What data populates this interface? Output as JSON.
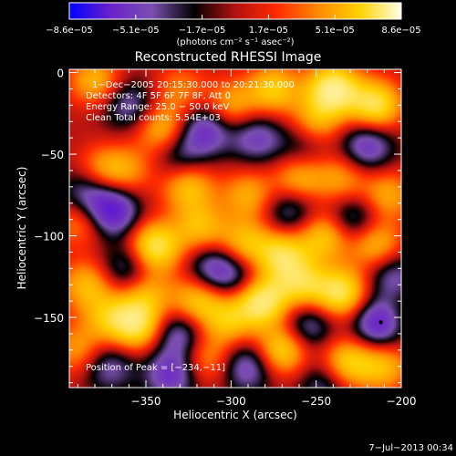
{
  "chart_data": {
    "type": "heatmap",
    "title": "Reconstructed RHESSI Image",
    "xlabel": "Heliocentric X (arcsec)",
    "ylabel": "Heliocentric Y (arcsec)",
    "xlim": [
      -395,
      -200
    ],
    "ylim": [
      -193,
      2
    ],
    "x_ticks": [
      -350,
      -300,
      -250,
      -200
    ],
    "x_tick_labels": [
      "−350",
      "−300",
      "−250",
      "−200"
    ],
    "y_ticks": [
      0,
      -50,
      -100,
      -150
    ],
    "y_tick_labels": [
      "0",
      "−50",
      "−100",
      "−150"
    ],
    "colorbar": {
      "tick_labels": [
        "−8.6e−05",
        "−5.1e−05",
        "−1.7e−05",
        "1.7e−05",
        "5.1e−05",
        "8.6e−05"
      ],
      "unit_label": "(photons cm⁻² s⁻¹ asec⁻²)",
      "range": [
        -8.6e-05,
        8.6e-05
      ],
      "colors": [
        "#0000ff",
        "#6a22c9",
        "#7a4fb0",
        "#000000",
        "#b31212",
        "#ff2a00",
        "#ff8a00",
        "#ffd200",
        "#ffffe6"
      ]
    },
    "annotations": [
      "1−Dec−2005 20:15:30.000 to 20:21:30.000",
      "Detectors: 4F 5F 6F 7F 8F, Att 0",
      "Energy Range: 25.0 − 50.0 keV",
      "Clean     Total counts: 5.54E+03"
    ],
    "peak_label": "Position of Peak = [−234,−11]",
    "peak_position": [
      -234,
      -11
    ],
    "sources": [
      {
        "x": -380,
        "y": -5,
        "v": 0.55
      },
      {
        "x": -340,
        "y": -35,
        "v": 0.6
      },
      {
        "x": -330,
        "y": -10,
        "v": 0.35
      },
      {
        "x": -300,
        "y": -20,
        "v": 0.5
      },
      {
        "x": -275,
        "y": -10,
        "v": 0.65
      },
      {
        "x": -240,
        "y": -10,
        "v": 1.0
      },
      {
        "x": -215,
        "y": -20,
        "v": 0.85
      },
      {
        "x": -250,
        "y": -30,
        "v": 0.5
      },
      {
        "x": -375,
        "y": -60,
        "v": 0.45
      },
      {
        "x": -360,
        "y": -60,
        "v": 0.35
      },
      {
        "x": -325,
        "y": -70,
        "v": 0.6
      },
      {
        "x": -290,
        "y": -75,
        "v": 0.5
      },
      {
        "x": -260,
        "y": -65,
        "v": 0.55
      },
      {
        "x": -235,
        "y": -65,
        "v": 0.45
      },
      {
        "x": -208,
        "y": -75,
        "v": 0.5
      },
      {
        "x": -388,
        "y": -90,
        "v": 0.5
      },
      {
        "x": -345,
        "y": -107,
        "v": 0.9
      },
      {
        "x": -318,
        "y": -95,
        "v": 0.55
      },
      {
        "x": -292,
        "y": -105,
        "v": 0.6
      },
      {
        "x": -270,
        "y": -112,
        "v": 0.75
      },
      {
        "x": -245,
        "y": -100,
        "v": 0.65
      },
      {
        "x": -215,
        "y": -105,
        "v": 0.6
      },
      {
        "x": -385,
        "y": -130,
        "v": 0.55
      },
      {
        "x": -350,
        "y": -135,
        "v": 0.5
      },
      {
        "x": -320,
        "y": -140,
        "v": 0.65
      },
      {
        "x": -302,
        "y": -152,
        "v": 0.55
      },
      {
        "x": -282,
        "y": -140,
        "v": 0.95
      },
      {
        "x": -258,
        "y": -130,
        "v": 0.65
      },
      {
        "x": -235,
        "y": -135,
        "v": 0.85
      },
      {
        "x": -372,
        "y": -150,
        "v": 0.5
      },
      {
        "x": -355,
        "y": -155,
        "v": 0.8
      },
      {
        "x": -390,
        "y": -170,
        "v": 0.45
      },
      {
        "x": -315,
        "y": -175,
        "v": 0.45
      },
      {
        "x": -270,
        "y": -170,
        "v": 0.75
      },
      {
        "x": -232,
        "y": -178,
        "v": 0.7
      },
      {
        "x": -205,
        "y": -150,
        "v": 0.4
      },
      {
        "x": -210,
        "y": -180,
        "v": 0.55
      },
      {
        "x": -360,
        "y": -20,
        "v": -0.45
      },
      {
        "x": -315,
        "y": -35,
        "v": -0.6
      },
      {
        "x": -285,
        "y": -40,
        "v": -0.5
      },
      {
        "x": -220,
        "y": -45,
        "v": -0.6
      },
      {
        "x": -370,
        "y": -85,
        "v": -0.8
      },
      {
        "x": -385,
        "y": -75,
        "v": -0.5
      },
      {
        "x": -330,
        "y": -50,
        "v": -0.4
      },
      {
        "x": -310,
        "y": -120,
        "v": -0.55
      },
      {
        "x": -265,
        "y": -85,
        "v": -0.45
      },
      {
        "x": -228,
        "y": -90,
        "v": -0.5
      },
      {
        "x": -360,
        "y": -120,
        "v": -0.5
      },
      {
        "x": -295,
        "y": -125,
        "v": -0.35
      },
      {
        "x": -212,
        "y": -153,
        "v": -1.0
      },
      {
        "x": -330,
        "y": -160,
        "v": -0.55
      },
      {
        "x": -255,
        "y": -155,
        "v": -0.5
      },
      {
        "x": -335,
        "y": -185,
        "v": -0.6
      },
      {
        "x": -290,
        "y": -180,
        "v": -0.55
      },
      {
        "x": -372,
        "y": -180,
        "v": -0.45
      },
      {
        "x": -245,
        "y": -190,
        "v": -0.4
      },
      {
        "x": -205,
        "y": -125,
        "v": -0.45
      },
      {
        "x": -258,
        "y": -45,
        "v": -0.3
      }
    ]
  },
  "footer": {
    "timestamp": "7−Jul−2013 00:34"
  }
}
